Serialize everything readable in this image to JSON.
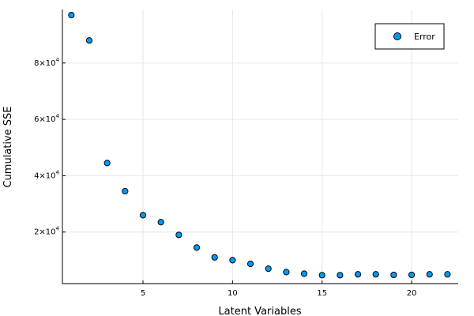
{
  "chart_data": {
    "type": "scatter",
    "title": "",
    "xlabel": "Latent Variables",
    "ylabel": "Cumulative SSE",
    "xlim": [
      0.5,
      22.6
    ],
    "ylim": [
      1700,
      99000
    ],
    "xticks": [
      5,
      10,
      15,
      20
    ],
    "xtick_labels": [
      "5",
      "10",
      "15",
      "20"
    ],
    "yticks": [
      20000,
      40000,
      60000,
      80000
    ],
    "ytick_labels": [
      {
        "mantissa": "2×10",
        "exp": "4"
      },
      {
        "mantissa": "4×10",
        "exp": "4"
      },
      {
        "mantissa": "6×10",
        "exp": "4"
      },
      {
        "mantissa": "8×10",
        "exp": "4"
      }
    ],
    "grid": true,
    "legend_position": "top-right",
    "series": [
      {
        "name": "Error",
        "color": "#009AFA",
        "x": [
          1,
          2,
          3,
          4,
          5,
          6,
          7,
          8,
          9,
          10,
          11,
          12,
          13,
          14,
          15,
          16,
          17,
          18,
          19,
          20,
          21,
          22
        ],
        "y": [
          97000,
          88000,
          44500,
          34500,
          26000,
          23500,
          19000,
          14500,
          11000,
          10000,
          8700,
          7000,
          5800,
          5200,
          4700,
          4700,
          5000,
          5000,
          4800,
          4800,
          5000,
          5000
        ]
      }
    ]
  }
}
